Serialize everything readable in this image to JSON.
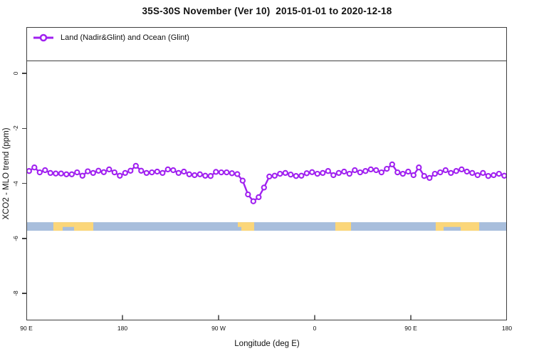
{
  "title": "35S-30S November (Ver 10)  2015-01-01 to 2020-12-18",
  "legend": {
    "label": "Land (Nadir&Glint) and Ocean (Glint)",
    "marker": "open-circle-on-line",
    "color": "#A020F0"
  },
  "axes": {
    "x": {
      "label": "Longitude (deg E)",
      "tick_labels": [
        "90 E",
        "180",
        "90 W",
        "0",
        "90 E",
        "180"
      ],
      "tick_axis_deg": [
        90,
        180,
        270,
        360,
        450,
        540
      ],
      "range_axis_deg": [
        90,
        540
      ]
    },
    "y": {
      "label": "XCO2 - MLO trend (ppm)",
      "tick_labels": [
        "0",
        "-2",
        "-4",
        "-6",
        "-8"
      ],
      "tick_values": [
        0,
        -2,
        -4,
        -6,
        -8
      ],
      "range": [
        -8.98,
        1.68
      ]
    }
  },
  "colors": {
    "series": "#A020F0",
    "ocean_band": "#A8BEDC",
    "land_band": "#FBD679",
    "axis": "#3f3f3f",
    "text": "#111111"
  },
  "chart_data": {
    "type": "line",
    "title": "35S-30S November (Ver 10)  2015-01-01 to 2020-12-18",
    "xlabel": "Longitude (deg E)",
    "ylabel": "XCO2 - MLO trend (ppm)",
    "x_axis_note": "longitude axis runs 90E eastward around the globe to 180 (axis deg 90 to 540)",
    "grid": false,
    "legend_position": "top-left-full-width-box",
    "series": [
      {
        "name": "Land (Nadir&Glint) and Ocean (Glint)",
        "color": "#A020F0",
        "marker": "open-circle",
        "x_start_deg": 92.5,
        "x_step_deg": 5,
        "values": [
          -3.55,
          -3.42,
          -3.6,
          -3.52,
          -3.62,
          -3.64,
          -3.64,
          -3.67,
          -3.67,
          -3.6,
          -3.72,
          -3.56,
          -3.62,
          -3.54,
          -3.59,
          -3.49,
          -3.6,
          -3.72,
          -3.62,
          -3.54,
          -3.36,
          -3.54,
          -3.62,
          -3.6,
          -3.57,
          -3.62,
          -3.49,
          -3.52,
          -3.62,
          -3.57,
          -3.67,
          -3.7,
          -3.67,
          -3.72,
          -3.73,
          -3.58,
          -3.6,
          -3.6,
          -3.63,
          -3.66,
          -3.9,
          -4.4,
          -4.65,
          -4.5,
          -4.15,
          -3.75,
          -3.72,
          -3.65,
          -3.62,
          -3.68,
          -3.73,
          -3.72,
          -3.63,
          -3.59,
          -3.65,
          -3.62,
          -3.55,
          -3.7,
          -3.62,
          -3.57,
          -3.65,
          -3.52,
          -3.6,
          -3.55,
          -3.49,
          -3.52,
          -3.6,
          -3.47,
          -3.31,
          -3.6,
          -3.65,
          -3.57,
          -3.7,
          -3.42,
          -3.73,
          -3.8,
          -3.65,
          -3.6,
          -3.52,
          -3.62,
          -3.55,
          -3.49,
          -3.57,
          -3.62,
          -3.7,
          -3.62,
          -3.73,
          -3.7,
          -3.65,
          -3.72
        ]
      }
    ],
    "map_strip": {
      "description": "ocean/land strip for the 35S-30S latitude band",
      "ocean_color": "#A8BEDC",
      "land_color": "#FBD679",
      "y_range_ppm": [
        -5.41,
        -5.72
      ],
      "land_segments": [
        {
          "from_deg": 115.3,
          "to_deg": 124.0,
          "extent": "full"
        },
        {
          "from_deg": 124.0,
          "to_deg": 134.7,
          "extent": "top"
        },
        {
          "from_deg": 134.7,
          "to_deg": 152.7,
          "extent": "full"
        },
        {
          "from_deg": 288.0,
          "to_deg": 291.3,
          "extent": "top"
        },
        {
          "from_deg": 291.3,
          "to_deg": 303.3,
          "extent": "full"
        },
        {
          "from_deg": 379.3,
          "to_deg": 394.0,
          "extent": "full"
        },
        {
          "from_deg": 473.3,
          "to_deg": 480.7,
          "extent": "full"
        },
        {
          "from_deg": 480.7,
          "to_deg": 496.7,
          "extent": "top"
        },
        {
          "from_deg": 496.7,
          "to_deg": 514.0,
          "extent": "full"
        }
      ]
    }
  }
}
